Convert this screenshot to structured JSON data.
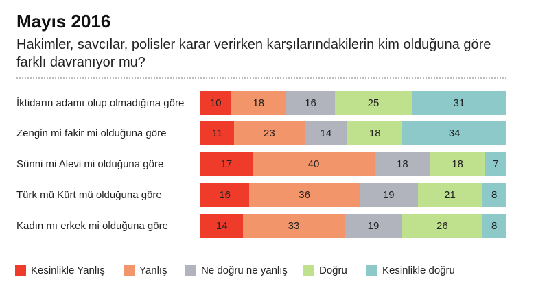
{
  "chart_data": {
    "type": "bar",
    "orientation": "horizontal",
    "stacked": true,
    "title": "Mayıs 2016",
    "subtitle": "Hakimler, savcılar, polisler karar verirken karşılarındakilerin kim olduğuna göre farklı davranıyor mu?",
    "categories": [
      "İktidarın adamı olup olmadığına göre",
      "Zengin mi fakir mi olduğuna göre",
      "Sünni mi Alevi mi olduğuna göre",
      "Türk mü Kürt mü olduğuna göre",
      "Kadın mı erkek mi olduğuna göre"
    ],
    "series": [
      {
        "name": "Kesinlikle Yanlış",
        "color": "#ef3c2a",
        "values": [
          10,
          11,
          17,
          16,
          14
        ]
      },
      {
        "name": "Yanlış",
        "color": "#f3956a",
        "values": [
          18,
          23,
          40,
          36,
          33
        ]
      },
      {
        "name": "Ne doğru ne yanlış",
        "color": "#b1b4bd",
        "values": [
          16,
          14,
          18,
          19,
          19
        ]
      },
      {
        "name": "Doğru",
        "color": "#bfe08d",
        "values": [
          25,
          18,
          18,
          21,
          26
        ]
      },
      {
        "name": "Kesinlikle doğru",
        "color": "#8dc9c9",
        "values": [
          31,
          34,
          7,
          8,
          8
        ]
      }
    ],
    "legend_position": "bottom-left",
    "grid": false
  }
}
